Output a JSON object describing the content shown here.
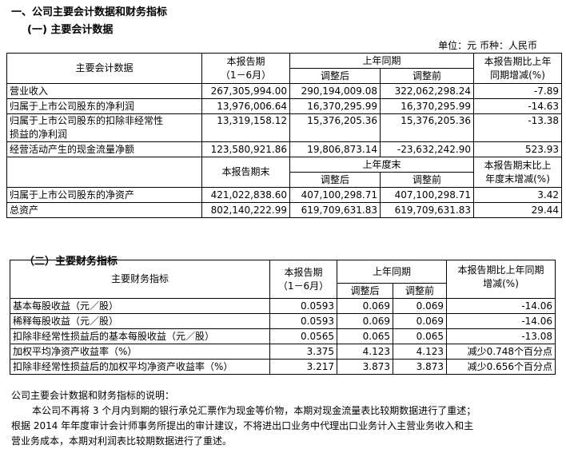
{
  "title": "一、公司主要会计数据和财务指标",
  "section1": "(一) 主要会计数据",
  "unit": "单位：元  币种：人民币",
  "t1": {
    "h_item": "主要会计数据",
    "h_cur": "本报告期",
    "h_cur2": "（1－6月）",
    "h_prev": "上年同期",
    "h_adj": "调整后",
    "h_pre": "调整前",
    "h_chg": "本报告期比上年",
    "h_chg2": "同期增减(%)",
    "h2_cur": "本报告期末",
    "h2_prev": "上年度末",
    "h2_adj": "调整后",
    "h2_pre": "调整前",
    "h2_chg": "本报告期末比上",
    "h2_chg2": "年度末增减(%)",
    "rows": [
      [
        "营业收入",
        "267,305,994.00",
        "290,194,009.08",
        "322,062,298.24",
        "-7.89"
      ],
      [
        "归属于上市公司股东的净利润",
        "13,976,006.64",
        "16,370,295.99",
        "16,370,295.99",
        "-14.63"
      ],
      [
        "归属于上市公司股东的扣除非经常性",
        "13,319,158.12",
        "15,376,205.36",
        "15,376,205.36",
        "-13.38"
      ],
      [
        "经营活动产生的现金流量净额",
        "123,580,921.86",
        "19,806,873.14",
        "-23,632,242.90",
        "523.93"
      ],
      [
        "归属于上市公司股东的净资产",
        "421,022,838.60",
        "407,100,298.71",
        "407,100,298.71",
        "3.42"
      ],
      [
        "总资产",
        "802,140,222.99",
        "619,709,631.83",
        "619,709,631.83",
        "29.44"
      ]
    ],
    "row3_line2": "损益的净利润"
  },
  "section2": "（二）主要财务指标",
  "t2": {
    "h_item": "主要财务指标",
    "h_cur": "本报告期",
    "h_cur2": "（1－6月）",
    "h_prev": "上年同期",
    "h_adj": "调整后",
    "h_pre": "调整前",
    "h_chg": "本报告期比上年同期",
    "h_chg2": "增减(%)",
    "rows": [
      [
        "基本每股收益（元／股）",
        "0.0593",
        "0.069",
        "0.069",
        "-14.06"
      ],
      [
        "稀释每股收益（元／股）",
        "0.0593",
        "0.069",
        "0.069",
        "-14.06"
      ],
      [
        "扣除非经常性损益后的基本每股收益（元／股）",
        "0.0565",
        "0.065",
        "0.065",
        "-13.08"
      ],
      [
        "加权平均净资产收益率（%）",
        "3.375",
        "4.123",
        "4.123",
        "减少0.748个百分点"
      ],
      [
        "扣除非经常性损益后的加权平均净资产收益率（%）",
        "3.217",
        "3.873",
        "3.873",
        "减少0.656个百分点"
      ]
    ]
  },
  "notes": {
    "heading": "公司主要会计数据和财务指标的说明：",
    "body1": "本公司不再将 3 个月内到期的银行承兑汇票作为现金等价物，本期对现金流量表比较期数据进行了重述；",
    "body2": "根据 2014 年年度审计会计师事务所提出的审计建议，不将进出口业务中代理出口业务计入主营业务收入和主",
    "body3": "营业务成本，本期对利润表比较期数据进行了重述。"
  }
}
